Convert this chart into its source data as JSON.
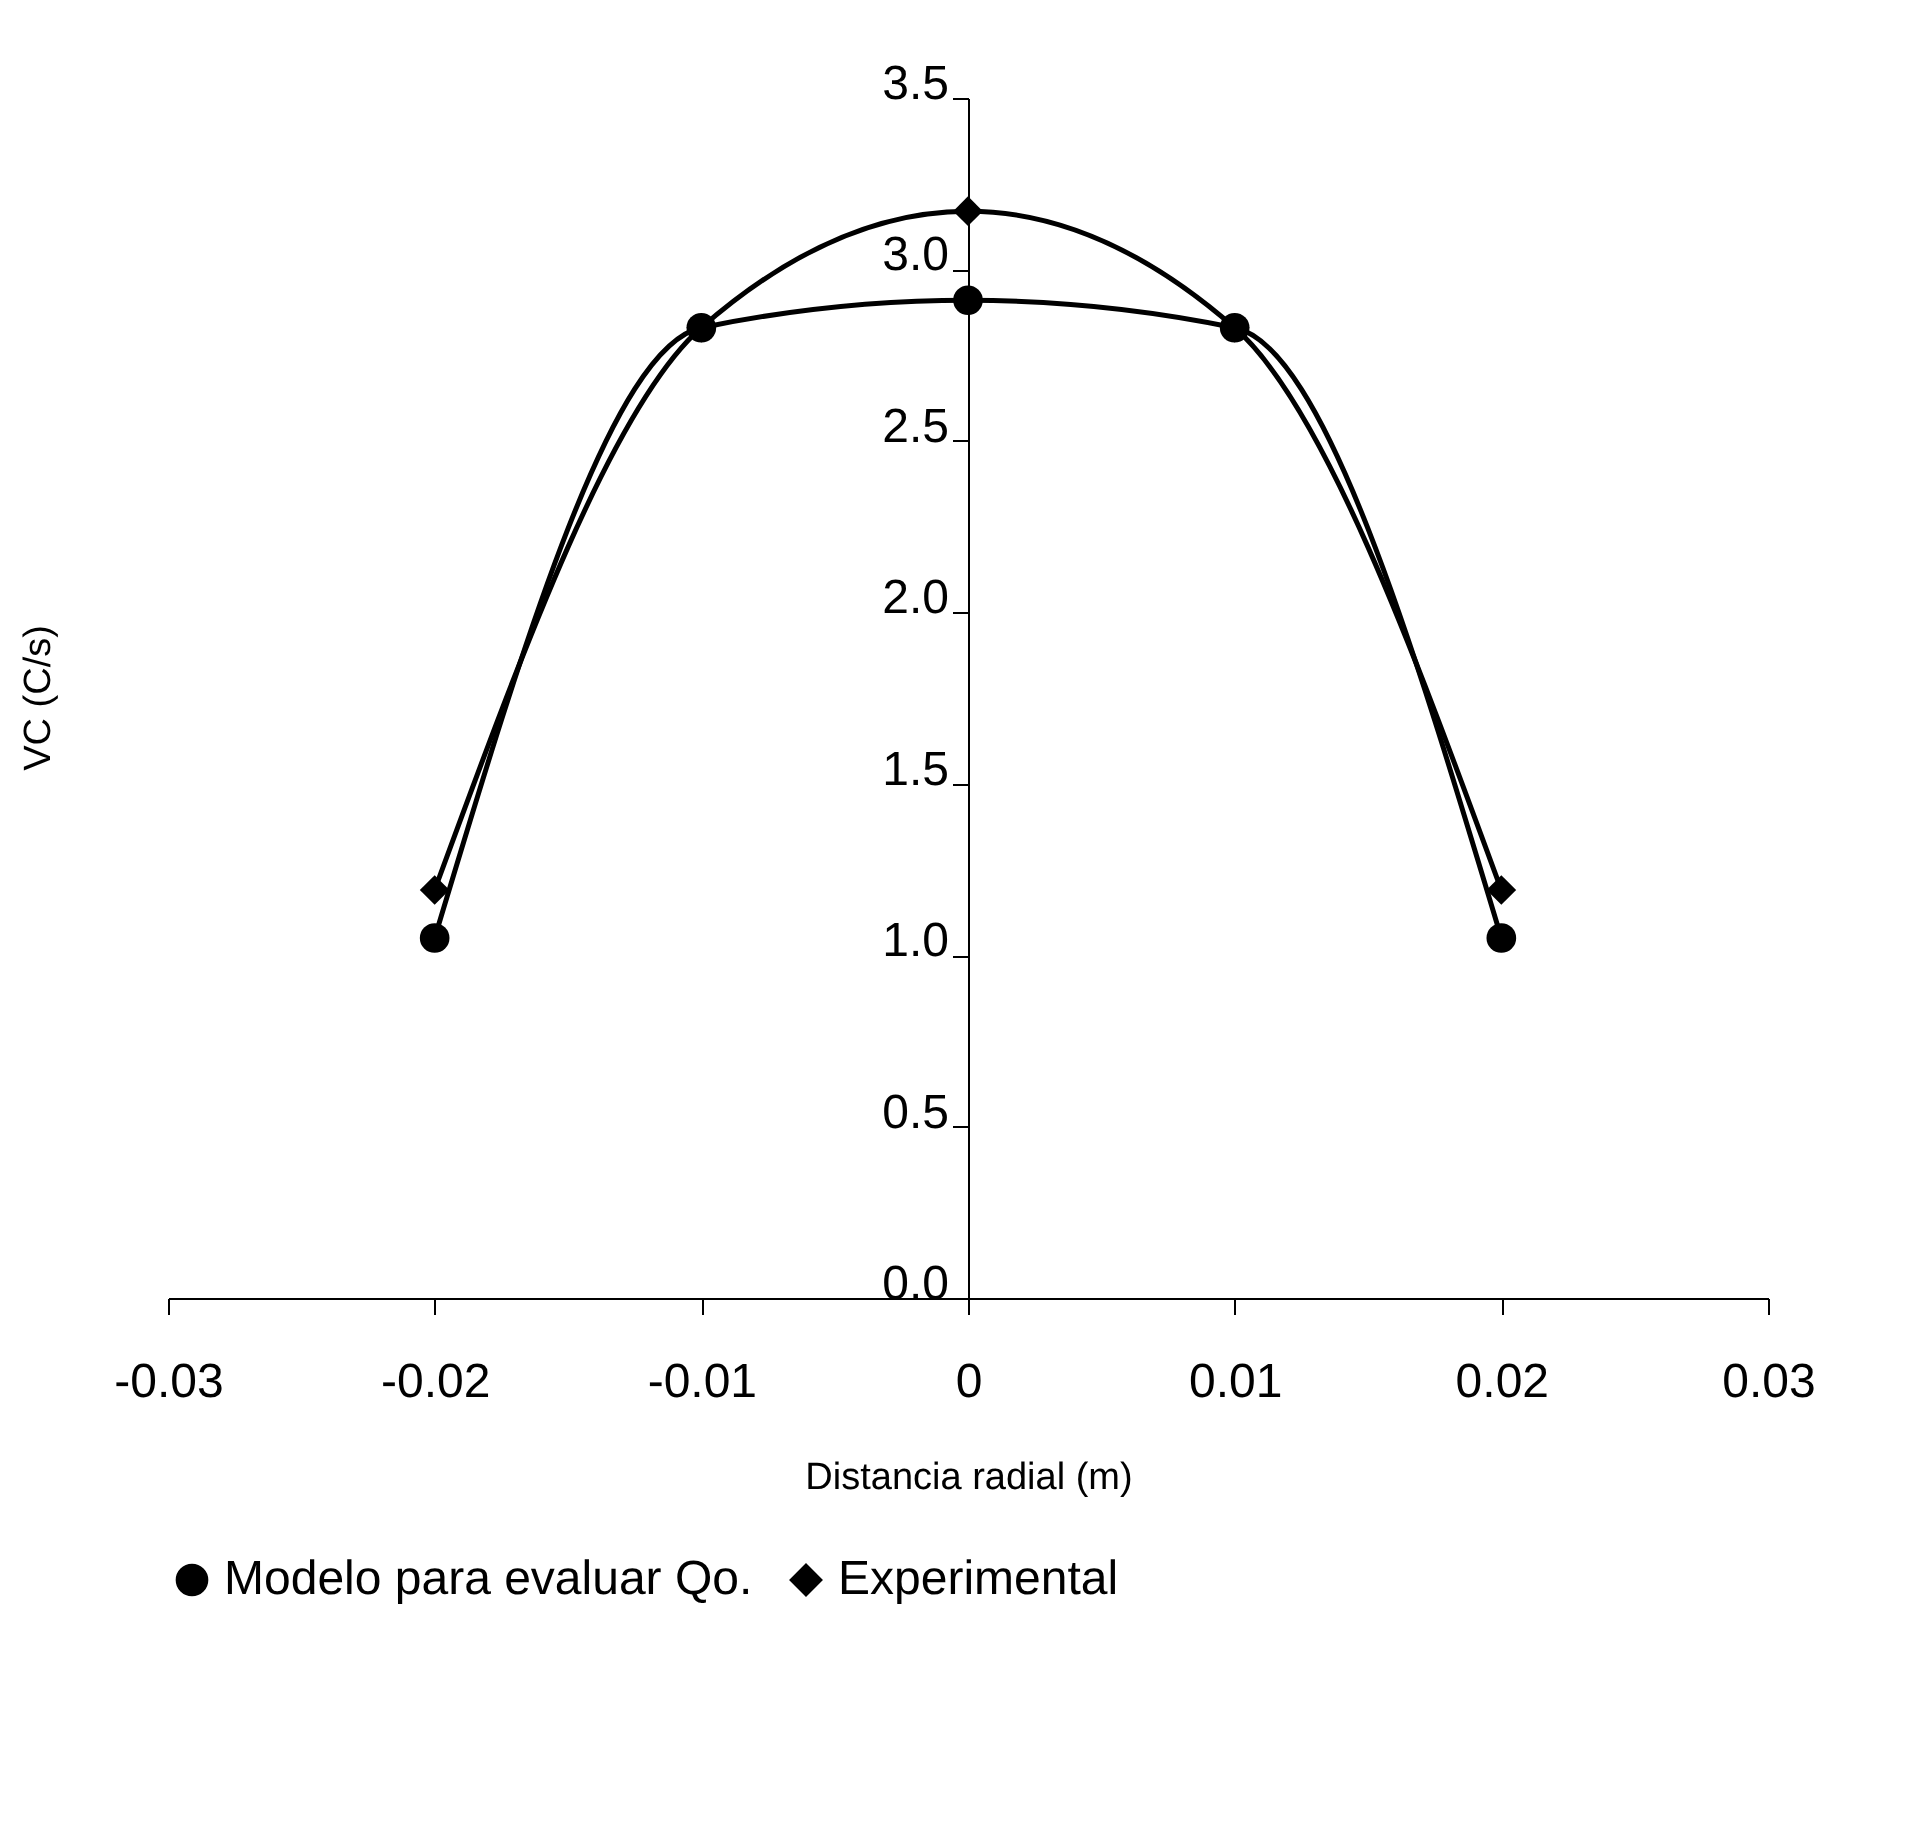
{
  "chart_data": {
    "type": "line",
    "xlabel": "Distancia radial (m)",
    "ylabel": "VC (C/s)",
    "x": [
      -0.02,
      -0.01,
      0,
      0.01,
      0.02
    ],
    "series": [
      {
        "name": "Modelo para evaluar Qo.",
        "color": "#000000",
        "marker": "circle",
        "values": [
          1.05,
          2.83,
          2.91,
          2.83,
          1.05
        ]
      },
      {
        "name": "Experimental",
        "color": "#000000",
        "marker": "diamond",
        "values": [
          1.19,
          2.83,
          3.17,
          2.83,
          1.19
        ]
      }
    ],
    "xlim": [
      -0.03,
      0.03
    ],
    "xticks": [
      {
        "value": -0.03,
        "label": "-0.03"
      },
      {
        "value": -0.02,
        "label": "-0.02"
      },
      {
        "value": -0.01,
        "label": "-0.01"
      },
      0,
      {
        "value": 0.01,
        "label": "0.01"
      },
      {
        "value": 0.02,
        "label": "0.02"
      },
      {
        "value": 0.03,
        "label": "0.03"
      }
    ],
    "ylim": [
      0,
      3.5
    ],
    "yticks": [
      {
        "value": 0,
        "label": "0.0"
      },
      0.5,
      {
        "value": 1,
        "label": "1.0"
      },
      1.5,
      {
        "value": 2,
        "label": "2.0"
      },
      2.5,
      {
        "value": 3,
        "label": "3.0"
      },
      3.5
    ],
    "grid": false,
    "legend": "bottom"
  }
}
